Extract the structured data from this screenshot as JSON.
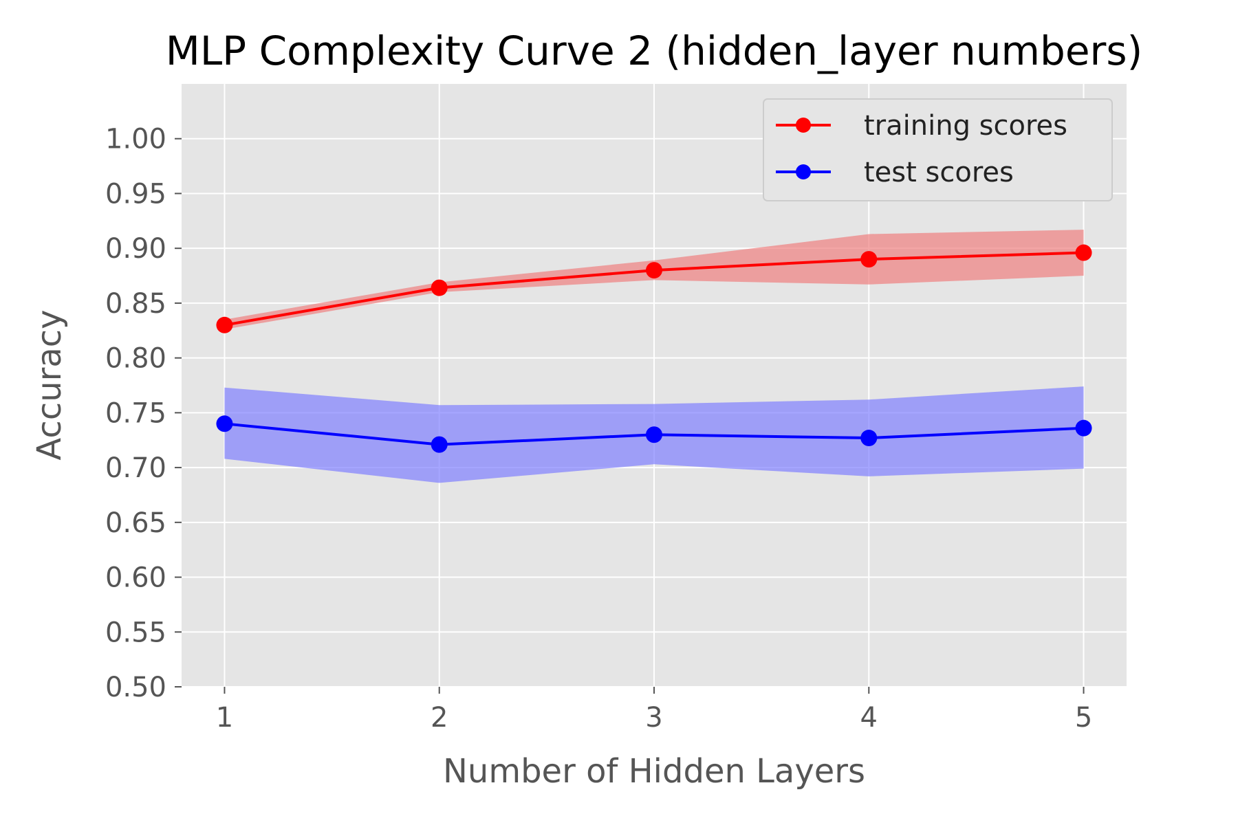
{
  "chart_data": {
    "type": "line",
    "title": "MLP Complexity Curve 2 (hidden_layer numbers)",
    "xlabel": "Number of Hidden Layers",
    "ylabel": "Accuracy",
    "x": [
      1,
      2,
      3,
      4,
      5
    ],
    "x_ticks": [
      "1",
      "2",
      "3",
      "4",
      "5"
    ],
    "xlim": [
      0.8,
      5.2
    ],
    "ylim": [
      0.5,
      1.05
    ],
    "y_ticks": [
      "0.50",
      "0.55",
      "0.60",
      "0.65",
      "0.70",
      "0.75",
      "0.80",
      "0.85",
      "0.90",
      "0.95",
      "1.00"
    ],
    "grid": true,
    "legend_position": "top-right",
    "style": "ggplot",
    "series": [
      {
        "name": "training scores",
        "color": "#ff0000",
        "band_color": "#f08080",
        "values": [
          0.83,
          0.864,
          0.88,
          0.89,
          0.896
        ],
        "lower": [
          0.826,
          0.86,
          0.871,
          0.867,
          0.875
        ],
        "upper": [
          0.835,
          0.869,
          0.889,
          0.913,
          0.917
        ]
      },
      {
        "name": "test scores",
        "color": "#0000ff",
        "band_color": "#8080ff",
        "values": [
          0.74,
          0.721,
          0.73,
          0.727,
          0.736
        ],
        "lower": [
          0.708,
          0.686,
          0.703,
          0.692,
          0.699
        ],
        "upper": [
          0.773,
          0.757,
          0.758,
          0.762,
          0.774
        ]
      }
    ]
  }
}
